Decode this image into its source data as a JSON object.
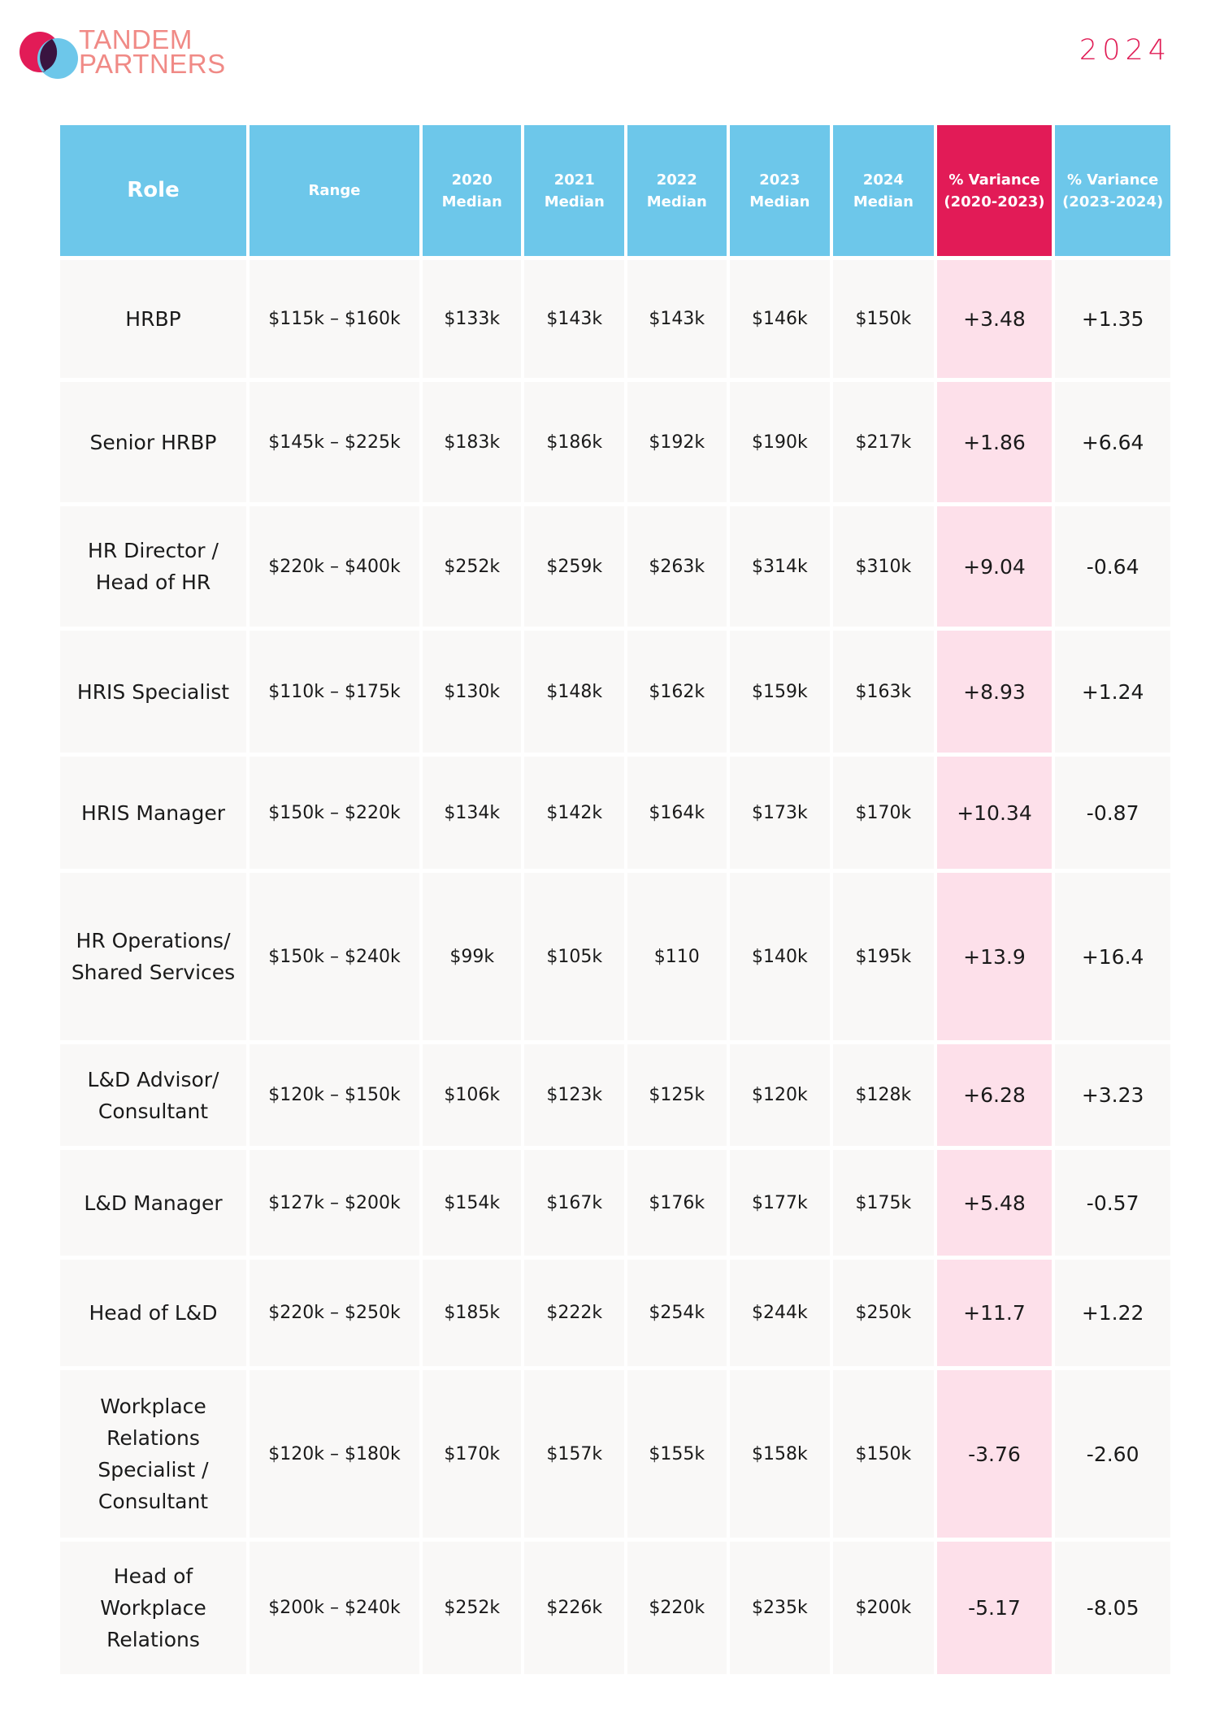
{
  "brand": {
    "line1": "TANDEM",
    "line2": "PARTNERS",
    "colors": {
      "circle_pink": "#e21b57",
      "circle_blue": "#6dc7ea",
      "overlap": "#3a1440",
      "text": "#f08a86"
    }
  },
  "year": "2024",
  "table": {
    "headers": {
      "role": "Role",
      "range": "Range",
      "m2020": "2020 Median",
      "m2021": "2021 Median",
      "m2022": "2022 Median",
      "m2023": "2023 Median",
      "m2024": "2024 Median",
      "var1": "% Variance (2020-2023)",
      "var2": "% Variance (2023-2024)"
    },
    "rows": [
      {
        "role": "HRBP",
        "range": "$115k – $160k",
        "m2020": "$133k",
        "m2021": "$143k",
        "m2022": "$143k",
        "m2023": "$146k",
        "m2024": "$150k",
        "var1": "+3.48",
        "var2": "+1.35"
      },
      {
        "role": "Senior HRBP",
        "range": "$145k – $225k",
        "m2020": "$183k",
        "m2021": "$186k",
        "m2022": "$192k",
        "m2023": "$190k",
        "m2024": "$217k",
        "var1": "+1.86",
        "var2": "+6.64"
      },
      {
        "role": "HR Director / Head of HR",
        "range": "$220k – $400k",
        "m2020": "$252k",
        "m2021": "$259k",
        "m2022": "$263k",
        "m2023": "$314k",
        "m2024": "$310k",
        "var1": "+9.04",
        "var2": "-0.64"
      },
      {
        "role": "HRIS Specialist",
        "range": "$110k – $175k",
        "m2020": "$130k",
        "m2021": "$148k",
        "m2022": "$162k",
        "m2023": "$159k",
        "m2024": "$163k",
        "var1": "+8.93",
        "var2": "+1.24"
      },
      {
        "role": "HRIS Manager",
        "range": "$150k – $220k",
        "m2020": "$134k",
        "m2021": "$142k",
        "m2022": "$164k",
        "m2023": "$173k",
        "m2024": "$170k",
        "var1": "+10.34",
        "var2": "-0.87"
      },
      {
        "role": "HR Operations/ Shared Services",
        "range": "$150k – $240k",
        "m2020": "$99k",
        "m2021": "$105k",
        "m2022": "$110",
        "m2023": "$140k",
        "m2024": "$195k",
        "var1": "+13.9",
        "var2": "+16.4"
      },
      {
        "role": "L&D Advisor/ Consultant",
        "range": "$120k – $150k",
        "m2020": "$106k",
        "m2021": "$123k",
        "m2022": "$125k",
        "m2023": "$120k",
        "m2024": "$128k",
        "var1": "+6.28",
        "var2": "+3.23"
      },
      {
        "role": "L&D Manager",
        "range": "$127k – $200k",
        "m2020": "$154k",
        "m2021": "$167k",
        "m2022": "$176k",
        "m2023": "$177k",
        "m2024": "$175k",
        "var1": "+5.48",
        "var2": "-0.57"
      },
      {
        "role": "Head of L&D",
        "range": "$220k – $250k",
        "m2020": "$185k",
        "m2021": "$222k",
        "m2022": "$254k",
        "m2023": "$244k",
        "m2024": "$250k",
        "var1": "+11.7",
        "var2": "+1.22"
      },
      {
        "role": "Workplace Relations Specialist / Consultant",
        "range": "$120k – $180k",
        "m2020": "$170k",
        "m2021": "$157k",
        "m2022": "$155k",
        "m2023": "$158k",
        "m2024": "$150k",
        "var1": "-3.76",
        "var2": "-2.60"
      },
      {
        "role": "Head of Workplace Relations",
        "range": "$200k – $240k",
        "m2020": "$252k",
        "m2021": "$226k",
        "m2022": "$220k",
        "m2023": "$235k",
        "m2024": "$200k",
        "var1": "-5.17",
        "var2": "-8.05"
      }
    ]
  }
}
